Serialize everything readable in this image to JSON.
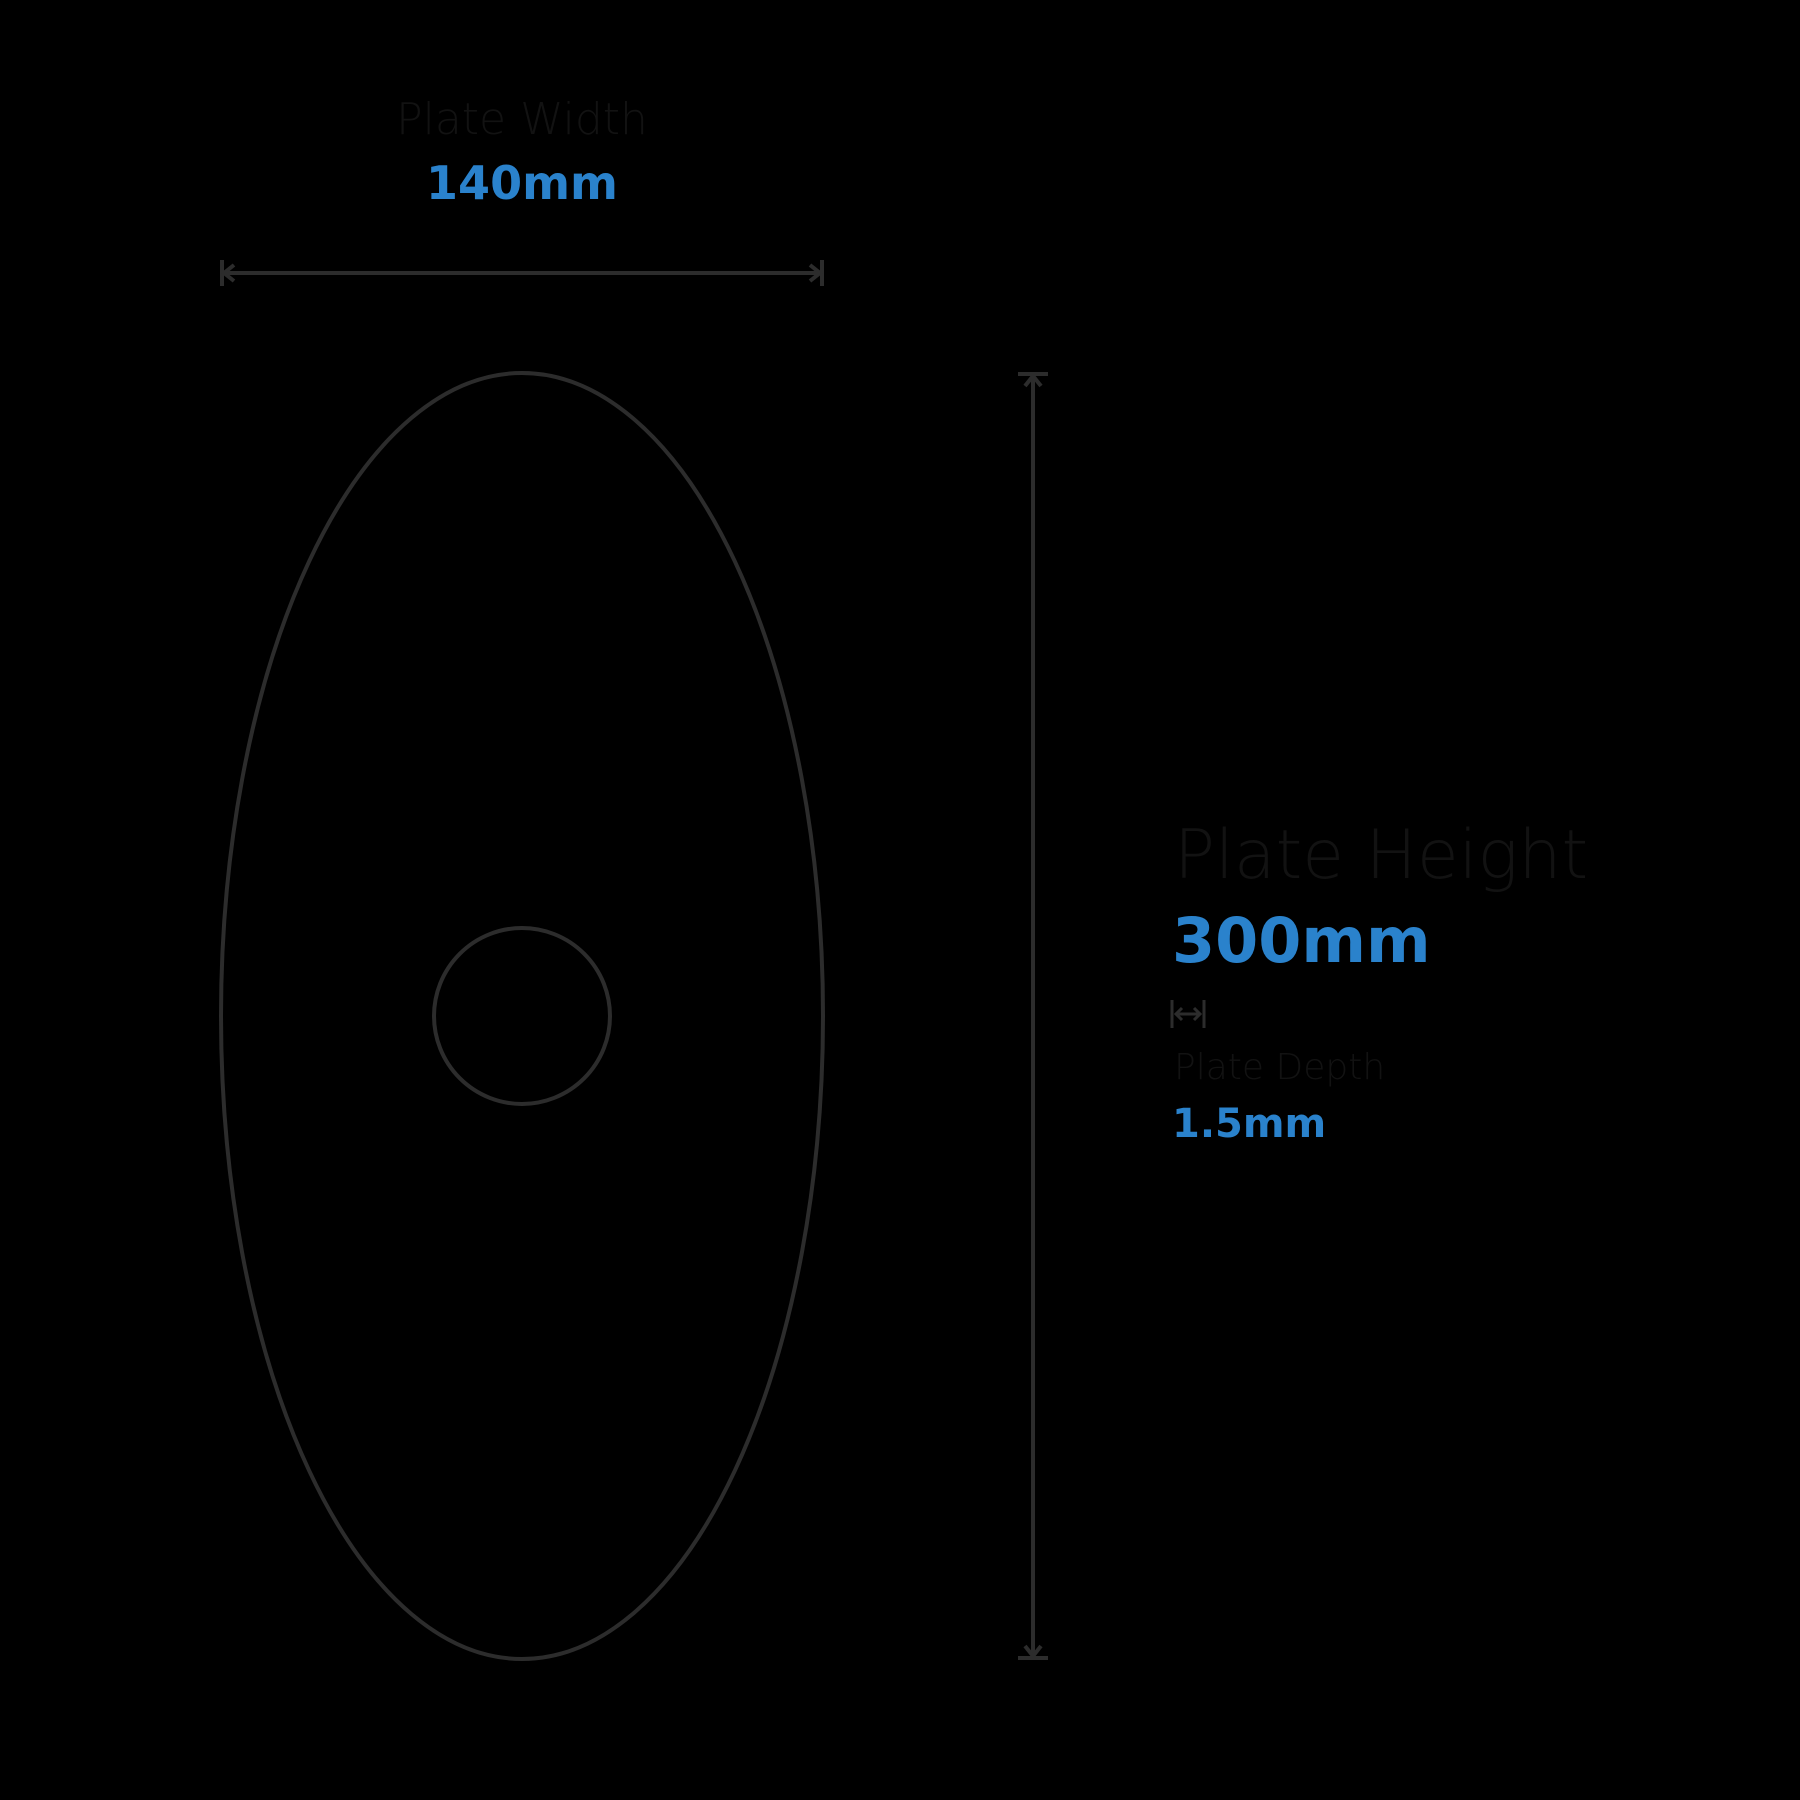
{
  "width": {
    "label": "Plate Width",
    "value": "140mm"
  },
  "height": {
    "label": "Plate Height",
    "value": "300mm"
  },
  "depth": {
    "label": "Plate Depth",
    "value": "1.5mm"
  },
  "colors": {
    "background": "#000000",
    "accent": "#2a82cc",
    "outline": "#2a2a2a",
    "label": "#121212"
  },
  "icons": {
    "depth": "double-arrow-icon"
  }
}
